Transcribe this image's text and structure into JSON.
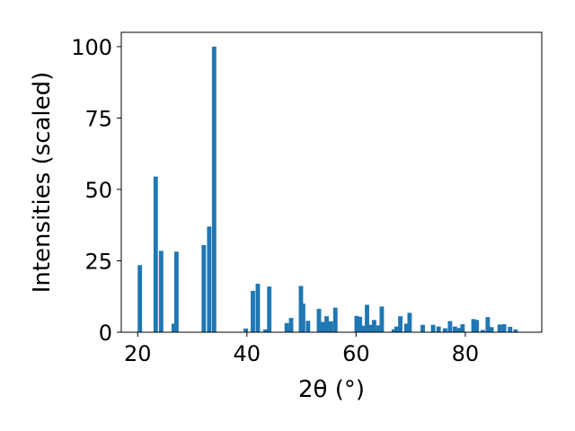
{
  "chart_data": {
    "type": "bar",
    "xlabel": "2θ (°)",
    "ylabel": "Intensities (scaled)",
    "xlim": [
      17,
      94
    ],
    "ylim": [
      0,
      105
    ],
    "xticks": [
      20,
      40,
      60,
      80
    ],
    "yticks": [
      0,
      25,
      50,
      75,
      100
    ],
    "grid": false,
    "bar_color": "#1f77b4",
    "bar_width": 0.8,
    "x": [
      20.4,
      23.3,
      24.3,
      26.6,
      27.1,
      32.1,
      33.1,
      34.0,
      39.8,
      41.1,
      42.0,
      43.4,
      44.1,
      47.3,
      48.1,
      49.9,
      50.3,
      51.2,
      53.2,
      53.9,
      54.6,
      55.4,
      56.2,
      60.1,
      60.7,
      61.4,
      62.0,
      62.6,
      63.3,
      64.1,
      64.7,
      66.9,
      67.4,
      68.1,
      69.2,
      69.8,
      72.2,
      74.1,
      75.1,
      76.3,
      77.2,
      78.1,
      78.9,
      79.5,
      81.5,
      82.1,
      83.2,
      84.1,
      84.8,
      86.3,
      87.1,
      88.2,
      89.2
    ],
    "values": [
      23.5,
      54.5,
      28.5,
      3.0,
      28.2,
      30.5,
      37.0,
      100.0,
      1.3,
      14.5,
      17.0,
      1.0,
      16.0,
      3.2,
      5.0,
      16.2,
      10.0,
      4.0,
      8.2,
      3.6,
      5.6,
      3.8,
      8.6,
      5.7,
      5.4,
      2.3,
      9.6,
      2.6,
      4.3,
      2.4,
      9.0,
      1.0,
      2.0,
      5.6,
      3.0,
      6.8,
      2.6,
      2.6,
      2.0,
      1.4,
      3.9,
      2.0,
      1.5,
      2.8,
      4.6,
      4.3,
      0.8,
      5.3,
      1.8,
      2.7,
      2.8,
      1.9,
      1.0
    ]
  }
}
